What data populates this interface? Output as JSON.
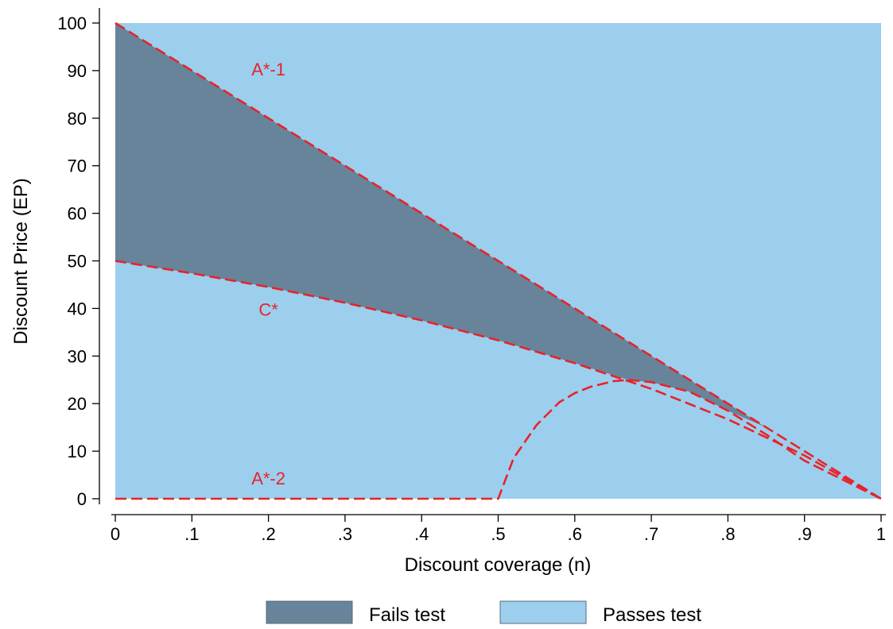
{
  "chart_data": {
    "type": "area",
    "xlabel": "Discount coverage (n)",
    "ylabel": "Discount Price (EP)",
    "xlim": [
      0,
      1
    ],
    "ylim": [
      0,
      100
    ],
    "x_ticks": [
      0,
      0.1,
      0.2,
      0.3,
      0.4,
      0.5,
      0.6,
      0.7,
      0.8,
      0.9,
      1
    ],
    "x_tick_labels": [
      "0",
      ".1",
      ".2",
      ".3",
      ".4",
      ".5",
      ".6",
      ".7",
      ".8",
      ".9",
      "1"
    ],
    "y_ticks": [
      0,
      10,
      20,
      30,
      40,
      50,
      60,
      70,
      80,
      90,
      100
    ],
    "y_tick_labels": [
      "0",
      "10",
      "20",
      "30",
      "40",
      "50",
      "60",
      "70",
      "80",
      "90",
      "100"
    ],
    "grid": false,
    "legend_position": "bottom",
    "regions": [
      {
        "name": "Passes test",
        "color": "#9ccfee",
        "x": [
          0,
          1,
          1,
          0
        ],
        "y": [
          0,
          0,
          100,
          100
        ]
      },
      {
        "name": "Fails test",
        "color": "#67849a",
        "x": [
          0,
          0.1,
          0.2,
          0.3,
          0.4,
          0.5,
          0.6,
          0.7,
          0.8,
          0.85,
          0.8,
          0.75,
          0.7,
          0.67,
          0.6,
          0.5,
          0.4,
          0.3,
          0.2,
          0.1,
          0
        ],
        "y": [
          100,
          90,
          80,
          70,
          60,
          50,
          40,
          30,
          20,
          15,
          18.5,
          22.5,
          24.5,
          25,
          28.5,
          33.3,
          37.5,
          41.2,
          44.5,
          47.4,
          50
        ]
      }
    ],
    "series": [
      {
        "name": "A*-1",
        "color": "#e8232a",
        "x": [
          0,
          1
        ],
        "y": [
          100,
          0
        ]
      },
      {
        "name": "C*",
        "color": "#e8232a",
        "x": [
          0,
          0.1,
          0.2,
          0.3,
          0.4,
          0.5,
          0.6,
          0.7,
          0.8,
          0.9,
          1
        ],
        "y": [
          50,
          47.4,
          44.5,
          41.2,
          37.5,
          33.3,
          28.5,
          23.1,
          16.7,
          9.1,
          0
        ]
      },
      {
        "name": "A*-2",
        "color": "#e8232a",
        "x": [
          0,
          0.5,
          0.52,
          0.55,
          0.58,
          0.6,
          0.62,
          0.65,
          0.67,
          0.7,
          0.75,
          0.8,
          0.85,
          0.9,
          0.95,
          1
        ],
        "y": [
          0,
          0,
          8.5,
          15.5,
          20.3,
          22.2,
          23.5,
          24.7,
          25,
          24.5,
          22.5,
          18.5,
          13.5,
          8,
          4,
          0
        ]
      }
    ],
    "annotations": [
      {
        "text": "A*-1",
        "x": 0.2,
        "y": 89
      },
      {
        "text": "C*",
        "x": 0.2,
        "y": 38.5
      },
      {
        "text": "A*-2",
        "x": 0.2,
        "y": 3
      }
    ],
    "legend": [
      {
        "label": "Fails test",
        "color": "#67849a"
      },
      {
        "label": "Passes test",
        "color": "#9ccfee"
      }
    ]
  }
}
